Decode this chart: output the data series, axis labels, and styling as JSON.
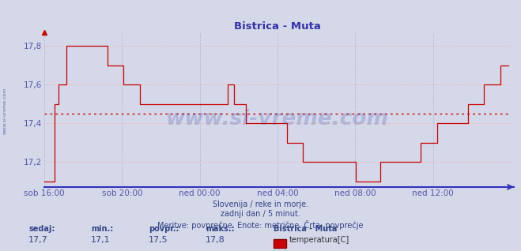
{
  "title": "Bistrica - Muta",
  "bg_color": "#d4d8e8",
  "plot_bg_color": "#d4d8e8",
  "line_color": "#cc0000",
  "avg_line_color": "#cc0000",
  "avg_line_value": 17.45,
  "x_label_color": "#5555aa",
  "y_label_color": "#5555aa",
  "grid_color_h": "#ffaaaa",
  "grid_color_v": "#aaaacc",
  "ylim": [
    17.07,
    17.87
  ],
  "yticks": [
    17.2,
    17.4,
    17.6,
    17.8
  ],
  "ytick_labels": [
    "17,2",
    "17,4",
    "17,6",
    "17,8"
  ],
  "xtick_labels": [
    "sob 16:00",
    "sob 20:00",
    "ned 00:00",
    "ned 04:00",
    "ned 08:00",
    "ned 12:00"
  ],
  "subtitle_lines": [
    "Slovenija / reke in morje.",
    "zadnji dan / 5 minut.",
    "Meritve: povprečne  Enote: metrične  Črta: povprečje"
  ],
  "footer_labels": [
    "sedaj:",
    "min.:",
    "povpr.:",
    "maks.:"
  ],
  "footer_values": [
    "17,7",
    "17,1",
    "17,5",
    "17,8"
  ],
  "footer_station": "Bistrica - Muta",
  "footer_series": "temperatura[C]",
  "watermark": "www.si-vreme.com",
  "data": [
    17.1,
    17.1,
    17.1,
    17.1,
    17.1,
    17.5,
    17.5,
    17.6,
    17.6,
    17.6,
    17.6,
    17.8,
    17.8,
    17.8,
    17.8,
    17.8,
    17.8,
    17.8,
    17.8,
    17.8,
    17.8,
    17.8,
    17.8,
    17.8,
    17.8,
    17.8,
    17.8,
    17.8,
    17.8,
    17.8,
    17.8,
    17.7,
    17.7,
    17.7,
    17.7,
    17.7,
    17.7,
    17.7,
    17.7,
    17.6,
    17.6,
    17.6,
    17.6,
    17.6,
    17.6,
    17.6,
    17.6,
    17.5,
    17.5,
    17.5,
    17.5,
    17.5,
    17.5,
    17.5,
    17.5,
    17.5,
    17.5,
    17.5,
    17.5,
    17.5,
    17.5,
    17.5,
    17.5,
    17.5,
    17.5,
    17.5,
    17.5,
    17.5,
    17.5,
    17.5,
    17.5,
    17.5,
    17.5,
    17.5,
    17.5,
    17.5,
    17.5,
    17.5,
    17.5,
    17.5,
    17.5,
    17.5,
    17.5,
    17.5,
    17.5,
    17.5,
    17.5,
    17.5,
    17.5,
    17.5,
    17.6,
    17.6,
    17.6,
    17.5,
    17.5,
    17.5,
    17.5,
    17.5,
    17.5,
    17.4,
    17.4,
    17.4,
    17.4,
    17.4,
    17.4,
    17.4,
    17.4,
    17.4,
    17.4,
    17.4,
    17.4,
    17.4,
    17.4,
    17.4,
    17.4,
    17.4,
    17.4,
    17.4,
    17.4,
    17.3,
    17.3,
    17.3,
    17.3,
    17.3,
    17.3,
    17.3,
    17.3,
    17.2,
    17.2,
    17.2,
    17.2,
    17.2,
    17.2,
    17.2,
    17.2,
    17.2,
    17.2,
    17.2,
    17.2,
    17.2,
    17.2,
    17.2,
    17.2,
    17.2,
    17.2,
    17.2,
    17.2,
    17.2,
    17.2,
    17.2,
    17.2,
    17.2,
    17.2,
    17.1,
    17.1,
    17.1,
    17.1,
    17.1,
    17.1,
    17.1,
    17.1,
    17.1,
    17.1,
    17.1,
    17.1,
    17.2,
    17.2,
    17.2,
    17.2,
    17.2,
    17.2,
    17.2,
    17.2,
    17.2,
    17.2,
    17.2,
    17.2,
    17.2,
    17.2,
    17.2,
    17.2,
    17.2,
    17.2,
    17.2,
    17.2,
    17.3,
    17.3,
    17.3,
    17.3,
    17.3,
    17.3,
    17.3,
    17.3,
    17.4,
    17.4,
    17.4,
    17.4,
    17.4,
    17.4,
    17.4,
    17.4,
    17.4,
    17.4,
    17.4,
    17.4,
    17.4,
    17.4,
    17.4,
    17.5,
    17.5,
    17.5,
    17.5,
    17.5,
    17.5,
    17.5,
    17.5,
    17.6,
    17.6,
    17.6,
    17.6,
    17.6,
    17.6,
    17.6,
    17.6,
    17.7,
    17.7,
    17.7,
    17.7,
    17.7
  ]
}
